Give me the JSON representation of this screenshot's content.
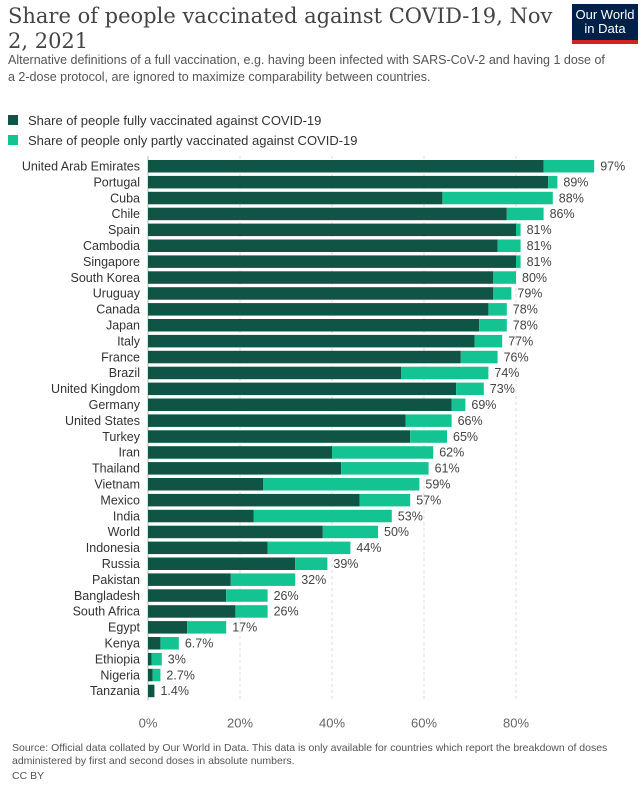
{
  "header": {
    "title": "Share of people vaccinated against COVID-19, Nov 2, 2021",
    "subtitle": "Alternative definitions of a full vaccination, e.g. having been infected with SARS-CoV-2 and having 1 dose of a 2-dose protocol, are ignored to maximize comparability between countries.",
    "logo_line1": "Our World",
    "logo_line2": "in Data"
  },
  "colors": {
    "fully": "#0f5445",
    "partly": "#14c392",
    "text": "#333333",
    "grid": "#d9d9d9"
  },
  "footer": {
    "source": "Source: Official data collated by Our World in Data. This data is only available for countries which report the breakdown of doses administered by first and second doses in absolute numbers.",
    "license": "CC BY"
  },
  "chart_data": {
    "type": "bar",
    "orientation": "horizontal",
    "stacked": true,
    "xlim": [
      0,
      100
    ],
    "x_ticks": [
      "0%",
      "20%",
      "40%",
      "60%",
      "80%"
    ],
    "grid": true,
    "legend_position": "top-left",
    "series": [
      {
        "name": "Share of people fully vaccinated against COVID-19",
        "color": "#0f5445",
        "values": [
          86,
          87,
          64,
          78,
          80,
          76,
          80,
          75,
          75,
          74,
          72,
          71,
          68,
          55,
          67,
          66,
          56,
          57,
          40,
          42,
          25,
          46,
          23,
          38,
          26,
          32,
          18,
          17,
          19,
          8.5,
          2.7,
          0.8,
          1.0,
          1.4
        ]
      },
      {
        "name": "Share of people only partly vaccinated against COVID-19",
        "color": "#14c392",
        "values": [
          11,
          2,
          24,
          8,
          1,
          5,
          1,
          5,
          4,
          4,
          6,
          6,
          8,
          19,
          6,
          3,
          10,
          8,
          22,
          19,
          34,
          11,
          30,
          12,
          18,
          7,
          14,
          9,
          7,
          8.5,
          4.0,
          2.2,
          1.7,
          0
        ]
      }
    ],
    "categories": [
      "United Arab Emirates",
      "Portugal",
      "Cuba",
      "Chile",
      "Spain",
      "Cambodia",
      "Singapore",
      "South Korea",
      "Uruguay",
      "Canada",
      "Japan",
      "Italy",
      "France",
      "Brazil",
      "United Kingdom",
      "Germany",
      "United States",
      "Turkey",
      "Iran",
      "Thailand",
      "Vietnam",
      "Mexico",
      "India",
      "World",
      "Indonesia",
      "Russia",
      "Pakistan",
      "Bangladesh",
      "South Africa",
      "Egypt",
      "Kenya",
      "Ethiopia",
      "Nigeria",
      "Tanzania"
    ],
    "totals": [
      97,
      89,
      88,
      86,
      81,
      81,
      81,
      80,
      79,
      78,
      78,
      77,
      76,
      74,
      73,
      69,
      66,
      65,
      62,
      61,
      59,
      57,
      53,
      50,
      44,
      39,
      32,
      26,
      26,
      17,
      6.7,
      3,
      2.7,
      1.4
    ],
    "total_labels": [
      "97%",
      "89%",
      "88%",
      "86%",
      "81%",
      "81%",
      "81%",
      "80%",
      "79%",
      "78%",
      "78%",
      "77%",
      "76%",
      "74%",
      "73%",
      "69%",
      "66%",
      "65%",
      "62%",
      "61%",
      "59%",
      "57%",
      "53%",
      "50%",
      "44%",
      "39%",
      "32%",
      "26%",
      "26%",
      "17%",
      "6.7%",
      "3%",
      "2.7%",
      "1.4%"
    ]
  }
}
